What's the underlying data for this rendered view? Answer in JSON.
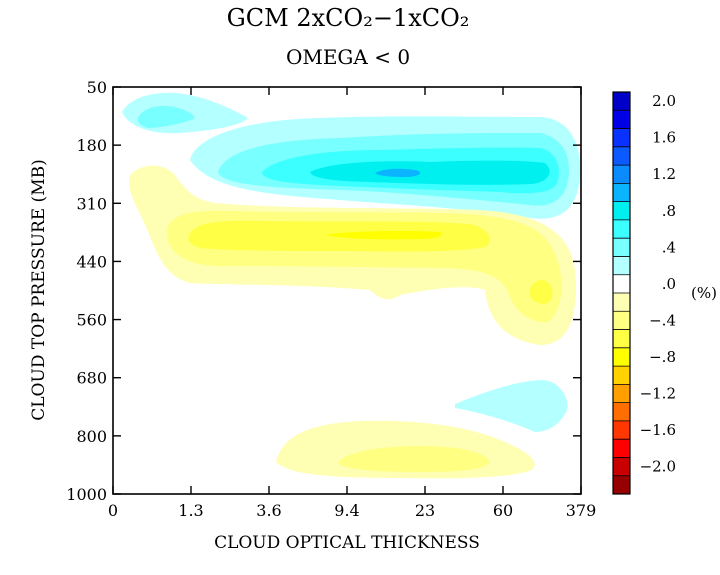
{
  "chart_data": {
    "type": "heatmap",
    "title": "GCM 2xCO₂−1xCO₂",
    "subtitle": "OMEGA < 0",
    "xlabel": "CLOUD OPTICAL THICKNESS",
    "ylabel": "CLOUD TOP PRESSURE (MB)",
    "x_ticks": [
      "0",
      "1.3",
      "3.6",
      "9.4",
      "23",
      "60",
      "379"
    ],
    "y_ticks": [
      "50",
      "180",
      "310",
      "440",
      "560",
      "680",
      "800",
      "1000"
    ],
    "colorbar": {
      "unit": "(%)",
      "tick_labels": [
        "2.0",
        "1.6",
        "1.2",
        ".8",
        ".4",
        ".0",
        "−.4",
        "−.8",
        "−1.2",
        "−1.6",
        "−2.0"
      ],
      "levels": [
        2.0,
        1.8,
        1.6,
        1.4,
        1.2,
        1.0,
        0.8,
        0.6,
        0.4,
        0.2,
        0.0,
        -0.2,
        -0.4,
        -0.6,
        -0.8,
        -1.0,
        -1.2,
        -1.4,
        -1.6,
        -1.8,
        -2.0
      ],
      "colors": [
        "#0000c8",
        "#0000e6",
        "#0a32ff",
        "#0a5aff",
        "#0a8cff",
        "#0ab4ff",
        "#00f0f0",
        "#3cffff",
        "#78ffff",
        "#b4ffff",
        "#ffffff",
        "#ffffb4",
        "#ffff82",
        "#ffff46",
        "#ffff00",
        "#ffd200",
        "#ffa000",
        "#ff6e00",
        "#ff3700",
        "#ff0000",
        "#c80000",
        "#960000"
      ]
    },
    "regions": [
      {
        "label": "upper positive band",
        "center_tau_index": 3.5,
        "center_pressure_mb": 220,
        "peak": 1.0
      },
      {
        "label": "upper-left positive lobe",
        "center_tau_index": 0.6,
        "center_pressure_mb": 110,
        "peak": 0.4
      },
      {
        "label": "mid negative band",
        "center_tau_index": 3.5,
        "center_pressure_mb": 365,
        "peak": -0.8
      },
      {
        "label": "right negative lobe",
        "center_tau_index": 5.4,
        "center_pressure_mb": 490,
        "peak": -0.6
      },
      {
        "label": "lower positive lobe",
        "center_tau_index": 5.3,
        "center_pressure_mb": 750,
        "peak": 0.2
      },
      {
        "label": "lower negative lobe",
        "center_tau_index": 3.5,
        "center_pressure_mb": 880,
        "peak": -0.4
      }
    ]
  }
}
